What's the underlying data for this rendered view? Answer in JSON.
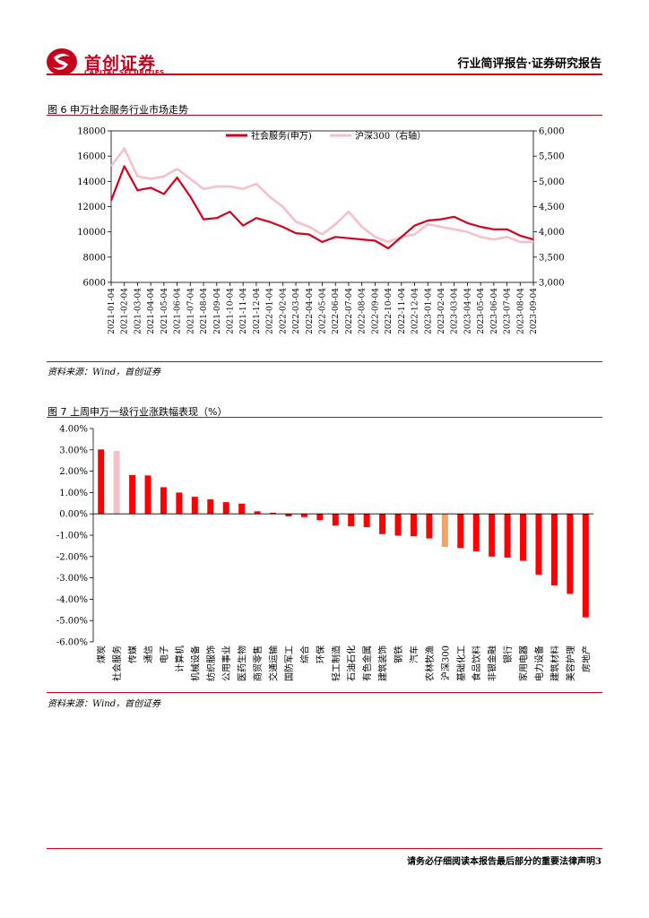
{
  "header": {
    "logo_cn": "首创证券",
    "logo_en": "CAPITAL SECURITIES",
    "report_type": "行业简评报告·证券研究报告"
  },
  "figure6": {
    "title": "图 6 申万社会服务行业市场走势",
    "source": "资料来源：Wind，首创证券"
  },
  "figure7": {
    "title": "图 7 上周申万一级行业涨跌幅表现（%）",
    "source": "资料来源：Wind，首创证券"
  },
  "footer": {
    "disclaimer": "请务必仔细阅读本报告最后部分的重要法律声明",
    "page_number": "3"
  },
  "chart_data": [
    {
      "type": "line",
      "title": "",
      "x": [
        "2021-01-04",
        "2021-02-04",
        "2021-03-04",
        "2021-04-04",
        "2021-05-04",
        "2021-06-04",
        "2021-07-04",
        "2021-08-04",
        "2021-09-04",
        "2021-10-04",
        "2021-11-04",
        "2021-12-04",
        "2022-01-04",
        "2022-02-04",
        "2022-03-04",
        "2022-04-04",
        "2022-05-04",
        "2022-06-04",
        "2022-07-04",
        "2022-08-04",
        "2022-09-04",
        "2022-10-04",
        "2022-11-04",
        "2022-12-04",
        "2023-01-04",
        "2023-02-04",
        "2023-03-04",
        "2023-04-04",
        "2023-05-04",
        "2023-06-04",
        "2023-07-04",
        "2023-08-04",
        "2023-09-04"
      ],
      "series": [
        {
          "name": "社会服务(申万)",
          "axis": "left",
          "color": "#d7001c",
          "values": [
            12500,
            15200,
            13300,
            13500,
            13000,
            14300,
            12800,
            11000,
            11100,
            11600,
            10500,
            11100,
            10800,
            10400,
            9900,
            9800,
            9200,
            9600,
            9500,
            9400,
            9300,
            8700,
            9600,
            10500,
            10900,
            11000,
            11200,
            10700,
            10400,
            10200,
            10200,
            9700,
            9400
          ]
        },
        {
          "name": "沪深300（右轴）",
          "axis": "right",
          "color": "#f6c0c8",
          "values": [
            5300,
            5650,
            5100,
            5050,
            5100,
            5250,
            5050,
            4850,
            4900,
            4900,
            4850,
            4950,
            4700,
            4500,
            4200,
            4100,
            3950,
            4150,
            4400,
            4100,
            3900,
            3800,
            3900,
            3950,
            4150,
            4100,
            4050,
            4000,
            3900,
            3850,
            3900,
            3800,
            3800
          ]
        }
      ],
      "ylim_left": [
        6000,
        18000
      ],
      "ylim_right": [
        3000,
        6000
      ],
      "yticks_left": [
        "6000",
        "8000",
        "10000",
        "12000",
        "14000",
        "16000",
        "18000"
      ],
      "yticks_right": [
        "3,000",
        "3,500",
        "4,000",
        "4,500",
        "5,000",
        "5,500",
        "6,000"
      ],
      "legend_position": "top-center",
      "grid": false
    },
    {
      "type": "bar",
      "title": "",
      "categories": [
        "煤炭",
        "社会服务",
        "传媒",
        "通信",
        "电子",
        "计算机",
        "机械设备",
        "纺织服饰",
        "公用事业",
        "医药生物",
        "商贸零售",
        "交通运输",
        "国防军工",
        "综合",
        "环保",
        "轻工制造",
        "石油石化",
        "有色金属",
        "建筑装饰",
        "钢铁",
        "汽车",
        "农林牧渔",
        "沪深300",
        "基础化工",
        "食品饮料",
        "非银金融",
        "银行",
        "家用电器",
        "电力设备",
        "建筑材料",
        "美容护理",
        "房地产"
      ],
      "values": [
        3.02,
        2.95,
        1.82,
        1.8,
        1.25,
        1.0,
        0.8,
        0.68,
        0.55,
        0.48,
        0.12,
        0.05,
        -0.12,
        -0.15,
        -0.3,
        -0.55,
        -0.58,
        -0.62,
        -0.95,
        -1.02,
        -1.05,
        -1.15,
        -1.55,
        -1.6,
        -1.75,
        -2.0,
        -2.05,
        -2.2,
        -2.85,
        -3.35,
        -3.75,
        -4.85
      ],
      "highlight": {
        "社会服务": "#f6c0c8",
        "沪深300": "#f4a460"
      },
      "bar_color": "#ff0000",
      "ylim": [
        -6,
        4
      ],
      "yticks": [
        "-6.00%",
        "-5.00%",
        "-4.00%",
        "-3.00%",
        "-2.00%",
        "-1.00%",
        "0.00%",
        "1.00%",
        "2.00%",
        "3.00%",
        "4.00%"
      ],
      "grid": false
    }
  ]
}
